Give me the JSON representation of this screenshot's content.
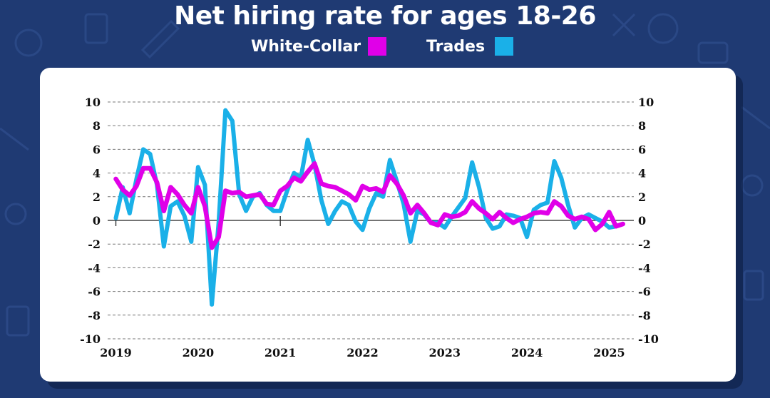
{
  "title": "Net hiring rate for ages 18-26",
  "legend": [
    {
      "label": "White-Collar",
      "color": "#e000e8"
    },
    {
      "label": "Trades",
      "color": "#1ab0e8"
    }
  ],
  "chart_data": {
    "type": "line",
    "title": "Net hiring rate for ages 18-26",
    "xlabel": "",
    "ylabel": "",
    "ylim": [
      -10,
      10
    ],
    "yticks": [
      10,
      8,
      6,
      4,
      2,
      0,
      -2,
      -4,
      -6,
      -8,
      -10
    ],
    "xlim": [
      2018.9,
      2025.3
    ],
    "xticks": [
      "2019",
      "2020",
      "2021",
      "2022",
      "2023",
      "2024",
      "2025"
    ],
    "grid": "horizontal dashed",
    "legend_position": "top",
    "series": [
      {
        "name": "White-Collar",
        "color": "#e000e8",
        "x": [
          2019.0,
          2019.083,
          2019.167,
          2019.25,
          2019.333,
          2019.417,
          2019.5,
          2019.583,
          2019.667,
          2019.75,
          2019.833,
          2019.917,
          2020.0,
          2020.083,
          2020.167,
          2020.25,
          2020.333,
          2020.417,
          2020.5,
          2020.583,
          2020.667,
          2020.75,
          2020.833,
          2020.917,
          2021.0,
          2021.083,
          2021.167,
          2021.25,
          2021.333,
          2021.417,
          2021.5,
          2021.583,
          2021.667,
          2021.75,
          2021.833,
          2021.917,
          2022.0,
          2022.083,
          2022.167,
          2022.25,
          2022.333,
          2022.417,
          2022.5,
          2022.583,
          2022.667,
          2022.75,
          2022.833,
          2022.917,
          2023.0,
          2023.083,
          2023.167,
          2023.25,
          2023.333,
          2023.417,
          2023.5,
          2023.583,
          2023.667,
          2023.75,
          2023.833,
          2023.917,
          2024.0,
          2024.083,
          2024.167,
          2024.25,
          2024.333,
          2024.417,
          2024.5,
          2024.583,
          2024.667,
          2024.75,
          2024.833,
          2024.917,
          2025.0,
          2025.083,
          2025.167
        ],
        "values": [
          3.5,
          2.6,
          2.1,
          2.9,
          4.4,
          4.4,
          3.2,
          0.8,
          2.8,
          2.2,
          1.3,
          0.6,
          2.8,
          1.2,
          -2.3,
          -1.4,
          2.5,
          2.3,
          2.4,
          2.0,
          2.1,
          2.2,
          1.4,
          1.3,
          2.5,
          2.9,
          3.6,
          3.3,
          4.1,
          4.8,
          3.1,
          2.9,
          2.8,
          2.5,
          2.2,
          1.7,
          2.9,
          2.6,
          2.7,
          2.4,
          3.8,
          3.1,
          2.1,
          0.6,
          1.3,
          0.6,
          -0.2,
          -0.4,
          0.5,
          0.3,
          0.4,
          0.7,
          1.6,
          1.0,
          0.6,
          0.1,
          0.7,
          0.2,
          -0.2,
          0.1,
          0.3,
          0.6,
          0.7,
          0.6,
          1.6,
          1.2,
          0.4,
          0.1,
          0.3,
          0.1,
          -0.8,
          -0.3,
          0.7,
          -0.5,
          -0.3
        ]
      },
      {
        "name": "Trades",
        "color": "#1ab0e8",
        "x": [
          2019.0,
          2019.083,
          2019.167,
          2019.25,
          2019.333,
          2019.417,
          2019.5,
          2019.583,
          2019.667,
          2019.75,
          2019.833,
          2019.917,
          2020.0,
          2020.083,
          2020.167,
          2020.25,
          2020.333,
          2020.417,
          2020.5,
          2020.583,
          2020.667,
          2020.75,
          2020.833,
          2020.917,
          2021.0,
          2021.083,
          2021.167,
          2021.25,
          2021.333,
          2021.417,
          2021.5,
          2021.583,
          2021.667,
          2021.75,
          2021.833,
          2021.917,
          2022.0,
          2022.083,
          2022.167,
          2022.25,
          2022.333,
          2022.417,
          2022.5,
          2022.583,
          2022.667,
          2022.75,
          2022.833,
          2022.917,
          2023.0,
          2023.083,
          2023.167,
          2023.25,
          2023.333,
          2023.417,
          2023.5,
          2023.583,
          2023.667,
          2023.75,
          2023.833,
          2023.917,
          2024.0,
          2024.083,
          2024.167,
          2024.25,
          2024.333,
          2024.417,
          2024.5,
          2024.583,
          2024.667,
          2024.75,
          2024.833,
          2024.917,
          2025.0,
          2025.083,
          2025.167
        ],
        "values": [
          0.2,
          2.8,
          0.6,
          3.5,
          6.0,
          5.6,
          3.0,
          -2.2,
          1.2,
          1.6,
          0.4,
          -1.8,
          4.5,
          3.0,
          -7.1,
          -0.2,
          9.3,
          8.4,
          2.2,
          0.8,
          2.0,
          2.3,
          1.3,
          0.8,
          0.8,
          2.5,
          4.0,
          3.6,
          6.8,
          4.7,
          1.7,
          -0.3,
          0.8,
          1.6,
          1.3,
          -0.1,
          -0.8,
          1.0,
          2.3,
          2.0,
          5.1,
          3.3,
          1.4,
          -1.8,
          0.8,
          0.5,
          -0.2,
          -0.2,
          -0.6,
          0.3,
          1.1,
          1.9,
          4.9,
          2.8,
          0.2,
          -0.7,
          -0.5,
          0.5,
          0.4,
          0.2,
          -1.4,
          0.9,
          1.3,
          1.5,
          5.0,
          3.6,
          1.3,
          -0.6,
          0.2,
          0.5,
          0.2,
          -0.1,
          -0.6,
          -0.5,
          -0.3
        ]
      }
    ]
  }
}
